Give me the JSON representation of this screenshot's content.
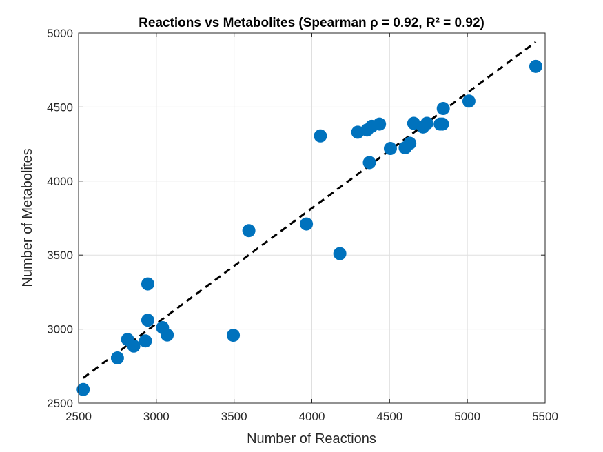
{
  "chart_data": {
    "type": "scatter",
    "title": "Reactions vs Metabolites (Spearman ρ = 0.92, R² = 0.92)",
    "xlabel": "Number of Reactions",
    "ylabel": "Number of Metabolites",
    "xlim": [
      2500,
      5500
    ],
    "ylim": [
      2500,
      5000
    ],
    "xticks": [
      "2500",
      "3000",
      "3500",
      "4000",
      "4500",
      "5000",
      "5500"
    ],
    "yticks": [
      "2500",
      "3000",
      "3500",
      "4000",
      "4500",
      "5000"
    ],
    "grid": true,
    "marker_color": "#0072BD",
    "fit_line": {
      "style": "dashed",
      "color": "#000000",
      "x": [
        2530,
        5440
      ],
      "y": [
        2670,
        4940
      ]
    },
    "points": [
      {
        "x": 2530,
        "y": 2592
      },
      {
        "x": 2750,
        "y": 2805
      },
      {
        "x": 2815,
        "y": 2930
      },
      {
        "x": 2855,
        "y": 2885
      },
      {
        "x": 2930,
        "y": 2920
      },
      {
        "x": 2945,
        "y": 3060
      },
      {
        "x": 2945,
        "y": 3305
      },
      {
        "x": 3040,
        "y": 3010
      },
      {
        "x": 3070,
        "y": 2960
      },
      {
        "x": 3495,
        "y": 2958
      },
      {
        "x": 3595,
        "y": 3665
      },
      {
        "x": 3965,
        "y": 3710
      },
      {
        "x": 4055,
        "y": 4305
      },
      {
        "x": 4180,
        "y": 3510
      },
      {
        "x": 4295,
        "y": 4330
      },
      {
        "x": 4355,
        "y": 4345
      },
      {
        "x": 4370,
        "y": 4125
      },
      {
        "x": 4385,
        "y": 4370
      },
      {
        "x": 4435,
        "y": 4385
      },
      {
        "x": 4505,
        "y": 4220
      },
      {
        "x": 4600,
        "y": 4225
      },
      {
        "x": 4630,
        "y": 4255
      },
      {
        "x": 4655,
        "y": 4390
      },
      {
        "x": 4715,
        "y": 4365
      },
      {
        "x": 4740,
        "y": 4390
      },
      {
        "x": 4825,
        "y": 4385
      },
      {
        "x": 4840,
        "y": 4385
      },
      {
        "x": 4845,
        "y": 4490
      },
      {
        "x": 5010,
        "y": 4540
      },
      {
        "x": 5440,
        "y": 4775
      }
    ]
  }
}
